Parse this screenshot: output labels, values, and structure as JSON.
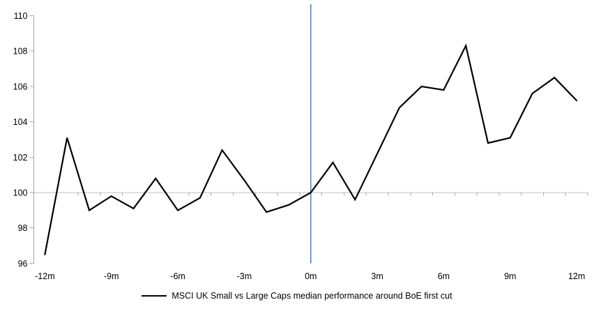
{
  "chart_data": {
    "type": "line",
    "title": "",
    "x": [
      -12,
      -11,
      -10,
      -9,
      -8,
      -7,
      -6,
      -5,
      -4,
      -3,
      -2,
      -1,
      0,
      1,
      2,
      3,
      4,
      5,
      6,
      7,
      8,
      9,
      10,
      11,
      12
    ],
    "series": [
      {
        "name": "MSCI UK Small vs Large Caps median performance around BoE first cut",
        "values": [
          96.5,
          103.1,
          99.0,
          99.8,
          99.1,
          100.8,
          99.0,
          99.7,
          102.4,
          100.7,
          98.9,
          99.3,
          100.0,
          101.7,
          99.6,
          102.2,
          104.8,
          106.0,
          105.8,
          108.3,
          102.8,
          103.1,
          105.6,
          106.5,
          105.2
        ],
        "color": "#000000"
      }
    ],
    "ylim": [
      96,
      110
    ],
    "y_ticks": [
      96,
      98,
      100,
      102,
      104,
      106,
      108,
      110
    ],
    "x_tick_labels": [
      {
        "pos": -12,
        "label": "-12m"
      },
      {
        "pos": -9,
        "label": "-9m"
      },
      {
        "pos": -6,
        "label": "-6m"
      },
      {
        "pos": -3,
        "label": "-3m"
      },
      {
        "pos": 0,
        "label": "0m"
      },
      {
        "pos": 3,
        "label": "3m"
      },
      {
        "pos": 6,
        "label": "6m"
      },
      {
        "pos": 9,
        "label": "9m"
      },
      {
        "pos": 12,
        "label": "12m"
      }
    ],
    "baseline": {
      "value": 100,
      "color": "#c0c0c0"
    },
    "event_line": {
      "x": 0,
      "color": "#4d86c8"
    },
    "grid": "off",
    "legend": {
      "position": "bottom",
      "label": "MSCI UK Small vs Large Caps median performance around BoE first cut"
    },
    "colors": {
      "axis": "#a6a6a6",
      "tick": "#a6a6a6",
      "text": "#000000",
      "series_line": "#000000"
    }
  }
}
